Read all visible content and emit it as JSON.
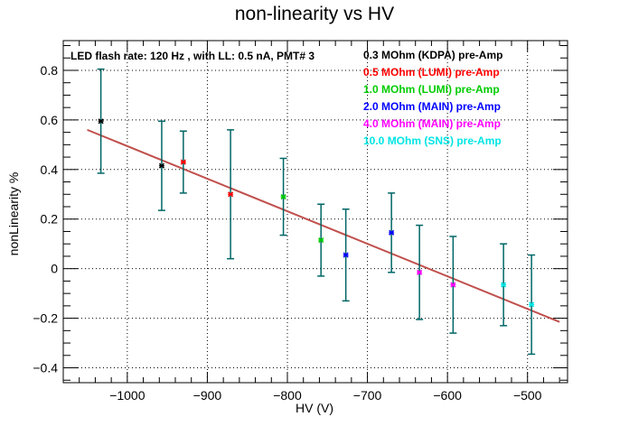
{
  "chart_data": {
    "type": "scatter",
    "title": "non-linearity vs HV",
    "xlabel": "HV (V)",
    "ylabel": "nonLinearity %",
    "xlim": [
      -1080,
      -450
    ],
    "ylim": [
      -0.46,
      0.92
    ],
    "x_ticks": [
      -1000,
      -900,
      -800,
      -700,
      -600,
      -500
    ],
    "y_ticks": [
      -0.4,
      -0.2,
      0,
      0.2,
      0.4,
      0.6,
      0.8
    ],
    "x_tick_labels": [
      "−1000",
      "−900",
      "−800",
      "−700",
      "−600",
      "−500"
    ],
    "y_tick_labels": [
      "−0.4",
      "−0.2",
      "0",
      "0.2",
      "0.4",
      "0.6",
      "0.8"
    ],
    "grid": true,
    "legend_position": "top-right",
    "header_text": "LED flash rate: 120 Hz , with LL: 0.5 nA, PMT# 3",
    "error_bar_color": "#006666",
    "fit_line": {
      "color": "#c0504d",
      "x": [
        -1050,
        -460
      ],
      "y": [
        0.56,
        -0.215
      ]
    },
    "series": [
      {
        "name": "0.3 MOhm (KDPA) pre-Amp",
        "color": "#000000",
        "points": [
          {
            "x": -1033,
            "y": 0.595,
            "err": 0.21
          },
          {
            "x": -957,
            "y": 0.415,
            "err": 0.18
          }
        ]
      },
      {
        "name": "0.5 MOhm (LUMI) pre-Amp",
        "color": "#ff0000",
        "points": [
          {
            "x": -930,
            "y": 0.43,
            "err": 0.125
          },
          {
            "x": -871,
            "y": 0.3,
            "err": 0.26
          }
        ]
      },
      {
        "name": "1.0 MOhm (LUMI) pre-Amp",
        "color": "#00cc00",
        "points": [
          {
            "x": -805,
            "y": 0.29,
            "err": 0.155
          },
          {
            "x": -758,
            "y": 0.115,
            "err": 0.145
          }
        ]
      },
      {
        "name": "2.0 MOhm (MAIN) pre-Amp",
        "color": "#0000ff",
        "points": [
          {
            "x": -727,
            "y": 0.055,
            "err": 0.185
          },
          {
            "x": -670,
            "y": 0.145,
            "err": 0.16
          }
        ]
      },
      {
        "name": "4.0 MOhm (MAIN) pre-Amp",
        "color": "#ff00ff",
        "points": [
          {
            "x": -635,
            "y": -0.015,
            "err": 0.19
          },
          {
            "x": -593,
            "y": -0.065,
            "err": 0.195
          }
        ]
      },
      {
        "name": "10.0 MOhm (SNS) pre-Amp",
        "color": "#00e5e5",
        "points": [
          {
            "x": -530,
            "y": -0.065,
            "err": 0.165
          },
          {
            "x": -495,
            "y": -0.145,
            "err": 0.2
          }
        ]
      }
    ]
  }
}
